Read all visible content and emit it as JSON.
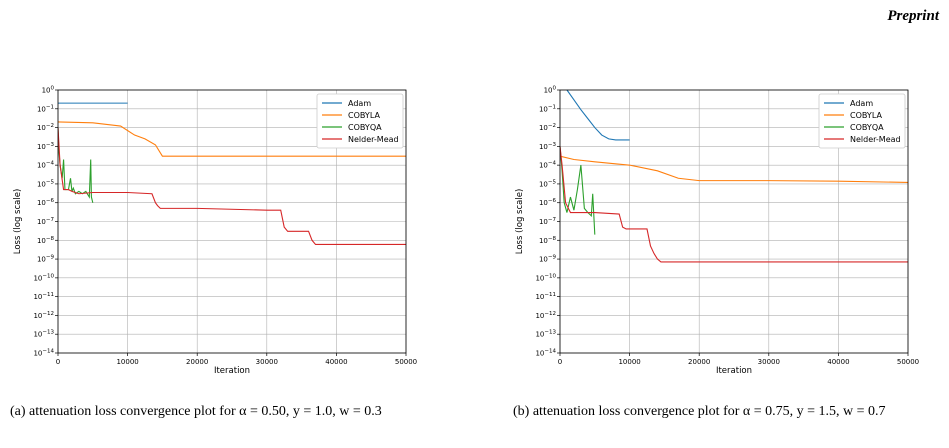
{
  "page": {
    "header": "Preprint"
  },
  "captions": [
    "(a) attenuation loss convergence plot for α = 0.50, y = 1.0, w = 0.3",
    "(b) attenuation loss convergence plot for α = 0.75, y = 1.5, w = 0.7"
  ],
  "colors": {
    "Adam": "#1f77b4",
    "COBYLA": "#ff7f0e",
    "COBYQA": "#2ca02c",
    "Nelder-Mead": "#d62728"
  },
  "chart_data": [
    {
      "type": "line",
      "xlabel": "Iteration",
      "ylabel": "Loss (log scale)",
      "yscale": "log",
      "xlim": [
        0,
        50000
      ],
      "ylim": [
        1e-14,
        1
      ],
      "xticks": [
        "0",
        "10000",
        "20000",
        "30000",
        "40000",
        "50000"
      ],
      "yticks": [
        "10^0",
        "10^-1",
        "10^-2",
        "10^-3",
        "10^-4",
        "10^-5",
        "10^-6",
        "10^-7",
        "10^-8",
        "10^-9",
        "10^-10",
        "10^-11",
        "10^-12",
        "10^-13",
        "10^-14"
      ],
      "grid": true,
      "legend_position": "top-right",
      "series": [
        {
          "name": "Adam",
          "x": [
            0,
            10000
          ],
          "y": [
            0.2,
            0.2
          ]
        },
        {
          "name": "COBYLA",
          "x": [
            0,
            5000,
            9000,
            11000,
            12500,
            14000,
            15000,
            20000,
            30000,
            40000,
            50000
          ],
          "y": [
            0.02,
            0.018,
            0.012,
            0.004,
            0.0025,
            0.0012,
            0.0003,
            0.0003,
            0.0003,
            0.0003,
            0.0003
          ]
        },
        {
          "name": "COBYQA",
          "x": [
            0,
            100,
            300,
            600,
            800,
            1000,
            1500,
            1800,
            2000,
            2200,
            2500,
            3000,
            3500,
            4000,
            4500,
            4700,
            4800,
            5000
          ],
          "y": [
            0.01,
            0.0008,
            0.0001,
            2e-05,
            0.0002,
            5e-06,
            5e-06,
            2e-05,
            4e-06,
            6e-06,
            3e-06,
            4e-06,
            3e-06,
            4e-06,
            2e-06,
            0.0002,
            2e-06,
            1e-06
          ]
        },
        {
          "name": "Nelder-Mead",
          "x": [
            0,
            300,
            800,
            1500,
            2000,
            3000,
            5000,
            10000,
            13500,
            14000,
            14300,
            14700,
            15000,
            20000,
            30000,
            32000,
            32500,
            33000,
            33500,
            36000,
            36500,
            37000,
            37500,
            40000,
            50000
          ],
          "y": [
            0.01,
            0.0001,
            5e-06,
            5e-06,
            4e-06,
            3e-06,
            3.5e-06,
            3.5e-06,
            3e-06,
            1e-06,
            7e-07,
            5e-07,
            5e-07,
            5e-07,
            4e-07,
            4e-07,
            5e-08,
            3e-08,
            3e-08,
            3e-08,
            1e-08,
            6e-09,
            6e-09,
            6e-09,
            6e-09
          ]
        }
      ]
    },
    {
      "type": "line",
      "xlabel": "Iteration",
      "ylabel": "Loss (log scale)",
      "yscale": "log",
      "xlim": [
        0,
        50000
      ],
      "ylim": [
        1e-14,
        1
      ],
      "xticks": [
        "0",
        "10000",
        "20000",
        "30000",
        "40000",
        "50000"
      ],
      "yticks": [
        "10^0",
        "10^-1",
        "10^-2",
        "10^-3",
        "10^-4",
        "10^-5",
        "10^-6",
        "10^-7",
        "10^-8",
        "10^-9",
        "10^-10",
        "10^-11",
        "10^-12",
        "10^-13",
        "10^-14"
      ],
      "grid": true,
      "legend_position": "top-right",
      "series": [
        {
          "name": "Adam",
          "x": [
            1000,
            2000,
            3000,
            4000,
            5000,
            6000,
            7000,
            8000,
            10000
          ],
          "y": [
            1,
            0.3,
            0.09,
            0.03,
            0.01,
            0.004,
            0.0025,
            0.0022,
            0.0022
          ]
        },
        {
          "name": "COBYLA",
          "x": [
            0,
            2000,
            5000,
            10000,
            14000,
            17000,
            20000,
            25000,
            30000,
            40000,
            50000
          ],
          "y": [
            0.0003,
            0.0002,
            0.00015,
            0.0001,
            5e-05,
            2e-05,
            1.5e-05,
            1.5e-05,
            1.5e-05,
            1.4e-05,
            1.2e-05
          ]
        },
        {
          "name": "COBYQA",
          "x": [
            0,
            300,
            600,
            1000,
            1500,
            2000,
            2500,
            3000,
            3500,
            4000,
            4500,
            4700,
            5000
          ],
          "y": [
            0.001,
            5e-05,
            1e-06,
            3e-07,
            2e-06,
            4e-07,
            5e-06,
            0.0001,
            5e-07,
            3e-07,
            2e-07,
            3e-06,
            2e-08
          ]
        },
        {
          "name": "Nelder-Mead",
          "x": [
            0,
            300,
            800,
            1500,
            2000,
            4000,
            5000,
            8500,
            9000,
            9500,
            12500,
            13000,
            13500,
            14000,
            14500,
            20000,
            30000,
            40000,
            50000
          ],
          "y": [
            0.001,
            0.0001,
            1e-06,
            3e-07,
            3e-07,
            3e-07,
            3e-07,
            2.5e-07,
            5e-08,
            4e-08,
            4e-08,
            5e-09,
            2e-09,
            1e-09,
            7e-10,
            7e-10,
            7e-10,
            7e-10,
            7e-10
          ]
        }
      ]
    }
  ]
}
